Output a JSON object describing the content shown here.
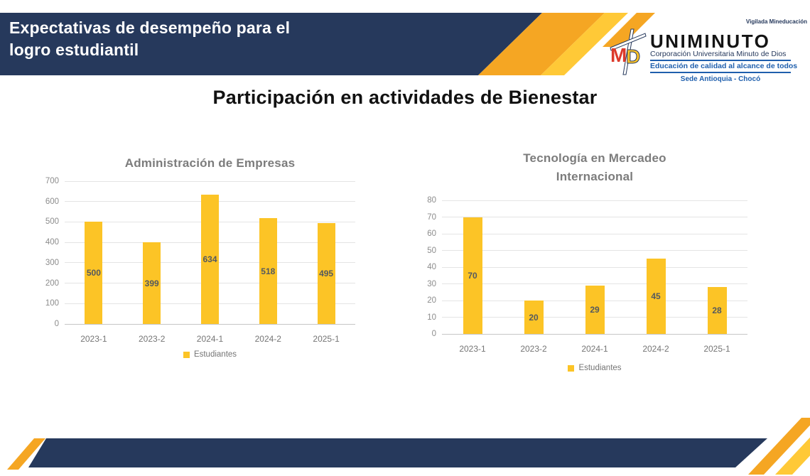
{
  "header": {
    "title": "Expectativas de desempeño para el logro estudiantil",
    "vigilada": "Vigilada Mineducación",
    "logo": {
      "monogram_m": "M",
      "monogram_d": "D",
      "name": "UNIMINUTO",
      "subtitle": "Corporación Universitaria Minuto de Dios",
      "tagline": "Educación de calidad al alcance de todos",
      "sede": "Sede Antioquia - Chocó"
    }
  },
  "main": {
    "title": "Participación en actividades de Bienestar"
  },
  "chart_data": [
    {
      "type": "bar",
      "title": "Administración de Empresas",
      "categories": [
        "2023-1",
        "2023-2",
        "2024-1",
        "2024-2",
        "2025-1"
      ],
      "series": [
        {
          "name": "Estudiantes",
          "values": [
            500,
            399,
            634,
            518,
            495
          ]
        }
      ],
      "xlabel": "",
      "ylabel": "",
      "ylim": [
        0,
        700
      ],
      "ytick_step": 100,
      "grid": true,
      "legend_position": "bottom",
      "bar_color": "#FCC426",
      "value_label_color": "#54595E"
    },
    {
      "type": "bar",
      "title": "Tecnología en Mercadeo Internacional",
      "categories": [
        "2023-1",
        "2023-2",
        "2024-1",
        "2024-2",
        "2025-1"
      ],
      "series": [
        {
          "name": "Estudiantes",
          "values": [
            70,
            20,
            29,
            45,
            28
          ]
        }
      ],
      "xlabel": "",
      "ylabel": "",
      "ylim": [
        0,
        80
      ],
      "ytick_step": 10,
      "grid": true,
      "legend_position": "bottom",
      "bar_color": "#FCC426",
      "value_label_color": "#54595E"
    }
  ],
  "colors": {
    "navy": "#26395C",
    "orange": "#F5A623",
    "yellow": "#FFC937",
    "bar_gold": "#FCC426",
    "logo_red": "#DC3A2B",
    "logo_blue": "#1F5FAD"
  }
}
